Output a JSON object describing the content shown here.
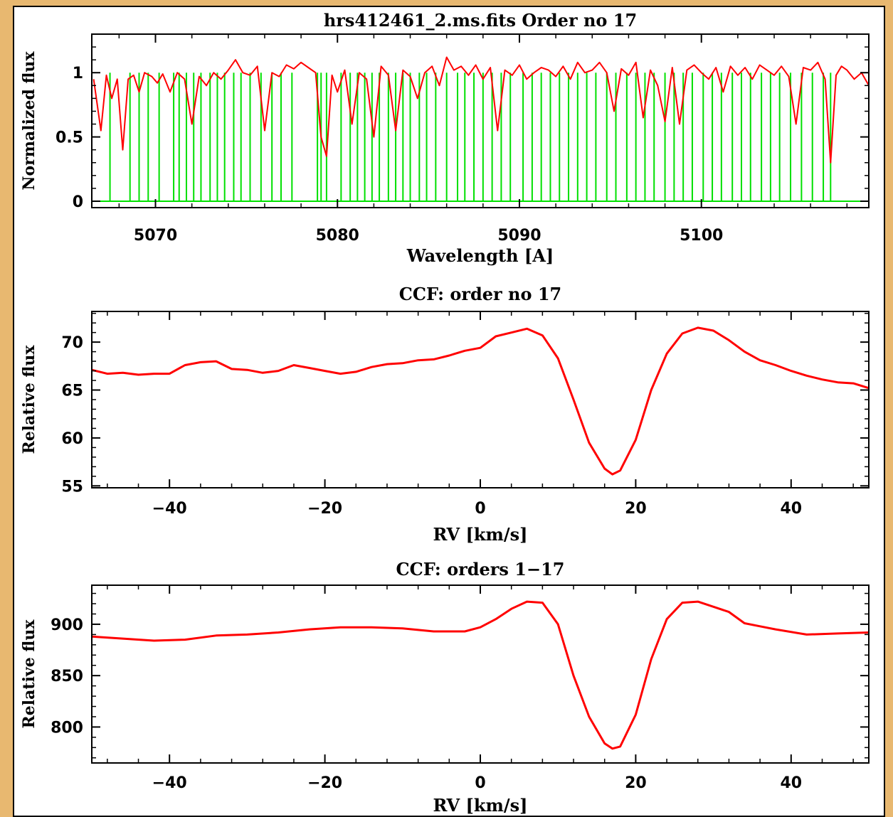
{
  "colors": {
    "page_background": "#e8b870",
    "plot_background": "#ffffff",
    "spectrum": "#ff0000",
    "mask": "#00e000",
    "axes": "#000000"
  },
  "chart_data": [
    {
      "type": "line",
      "title": "hrs412461_2.ms.fits Order no   17",
      "xlabel": "Wavelength [A]",
      "ylabel": "Normalized flux",
      "xlim": [
        5066.5,
        5109.2
      ],
      "ylim": [
        -0.05,
        1.3
      ],
      "xticks": [
        5070,
        5080,
        5090,
        5100
      ],
      "yticks": [
        0,
        0.5,
        1
      ],
      "xtick_labels": [
        "5070",
        "5080",
        "5090",
        "5100"
      ],
      "ytick_labels": [
        "0",
        "0.5",
        "1"
      ],
      "series": [
        {
          "label": "spectrum",
          "color": "#ff0000",
          "x": [
            5066.6,
            5067.0,
            5067.3,
            5067.6,
            5067.9,
            5068.2,
            5068.5,
            5068.8,
            5069.1,
            5069.4,
            5069.8,
            5070.1,
            5070.4,
            5070.8,
            5071.2,
            5071.6,
            5072.0,
            5072.4,
            5072.8,
            5073.2,
            5073.6,
            5074.0,
            5074.4,
            5074.8,
            5075.2,
            5075.6,
            5076.0,
            5076.4,
            5076.8,
            5077.2,
            5077.6,
            5078.0,
            5078.4,
            5078.8,
            5079.1,
            5079.4,
            5079.7,
            5080.0,
            5080.4,
            5080.8,
            5081.2,
            5081.6,
            5082.0,
            5082.4,
            5082.8,
            5083.2,
            5083.6,
            5084.0,
            5084.4,
            5084.8,
            5085.2,
            5085.6,
            5086.0,
            5086.4,
            5086.8,
            5087.2,
            5087.6,
            5088.0,
            5088.4,
            5088.8,
            5089.2,
            5089.6,
            5090.0,
            5090.4,
            5090.8,
            5091.2,
            5091.6,
            5092.0,
            5092.4,
            5092.8,
            5093.2,
            5093.6,
            5094.0,
            5094.4,
            5094.8,
            5095.2,
            5095.6,
            5096.0,
            5096.4,
            5096.8,
            5097.2,
            5097.6,
            5098.0,
            5098.4,
            5098.8,
            5099.2,
            5099.6,
            5100.0,
            5100.4,
            5100.8,
            5101.2,
            5101.6,
            5102.0,
            5102.4,
            5102.8,
            5103.2,
            5103.6,
            5104.0,
            5104.4,
            5104.8,
            5105.2,
            5105.6,
            5106.0,
            5106.4,
            5106.8,
            5107.1,
            5107.4,
            5107.7,
            5108.0,
            5108.4,
            5108.8,
            5109.2
          ],
          "y": [
            0.95,
            0.55,
            0.98,
            0.8,
            0.95,
            0.4,
            0.95,
            0.98,
            0.85,
            1.0,
            0.97,
            0.92,
            0.99,
            0.85,
            1.0,
            0.95,
            0.6,
            0.97,
            0.9,
            1.0,
            0.95,
            1.02,
            1.1,
            1.0,
            0.98,
            1.05,
            0.55,
            1.0,
            0.97,
            1.06,
            1.03,
            1.08,
            1.04,
            1.0,
            0.5,
            0.35,
            0.98,
            0.85,
            1.02,
            0.6,
            1.0,
            0.95,
            0.5,
            1.05,
            0.98,
            0.55,
            1.02,
            0.97,
            0.8,
            1.0,
            1.05,
            0.9,
            1.12,
            1.02,
            1.05,
            0.98,
            1.06,
            0.95,
            1.04,
            0.55,
            1.02,
            0.98,
            1.06,
            0.95,
            1.0,
            1.04,
            1.02,
            0.97,
            1.05,
            0.95,
            1.08,
            1.0,
            1.02,
            1.08,
            1.0,
            0.7,
            1.03,
            0.98,
            1.08,
            0.65,
            1.02,
            0.9,
            0.62,
            1.04,
            0.6,
            1.02,
            1.06,
            1.0,
            0.95,
            1.04,
            0.85,
            1.05,
            0.98,
            1.04,
            0.95,
            1.06,
            1.02,
            0.98,
            1.05,
            0.97,
            0.6,
            1.04,
            1.02,
            1.08,
            0.95,
            0.3,
            0.98,
            1.05,
            1.02,
            0.95,
            1.0,
            0.9
          ]
        },
        {
          "label": "mask",
          "color": "#00e000",
          "lines_x": [
            5067.5,
            5068.6,
            5069.1,
            5069.6,
            5070.2,
            5071.0,
            5071.3,
            5071.7,
            5072.1,
            5072.5,
            5073.0,
            5073.4,
            5073.8,
            5074.3,
            5074.7,
            5075.2,
            5075.8,
            5076.4,
            5076.9,
            5077.5,
            5078.9,
            5079.1,
            5079.4,
            5080.2,
            5080.7,
            5081.1,
            5081.5,
            5081.9,
            5082.3,
            5082.8,
            5083.2,
            5083.6,
            5084.0,
            5084.5,
            5084.9,
            5085.4,
            5086.0,
            5086.6,
            5087.0,
            5087.5,
            5088.0,
            5088.5,
            5089.0,
            5089.5,
            5090.2,
            5090.7,
            5091.2,
            5091.7,
            5092.2,
            5092.7,
            5093.2,
            5093.7,
            5094.2,
            5094.8,
            5095.3,
            5095.9,
            5096.4,
            5096.9,
            5097.4,
            5098.0,
            5098.5,
            5099.0,
            5099.5,
            5100.1,
            5100.6,
            5101.1,
            5101.7,
            5102.2,
            5102.7,
            5103.3,
            5103.8,
            5104.3,
            5104.9,
            5105.5,
            5106.1,
            5106.7,
            5107.1
          ]
        }
      ]
    },
    {
      "type": "line",
      "title": "CCF: order no 17",
      "xlabel": "RV [km/s]",
      "ylabel": "Relative flux",
      "xlim": [
        -50,
        50
      ],
      "ylim": [
        54.8,
        73.2
      ],
      "xticks": [
        -40,
        -20,
        0,
        20,
        40
      ],
      "yticks": [
        55,
        60,
        65,
        70
      ],
      "xtick_labels": [
        "−40",
        "−20",
        "0",
        "20",
        "40"
      ],
      "ytick_labels": [
        "55",
        "60",
        "65",
        "70"
      ],
      "series": [
        {
          "label": "ccf",
          "color": "#ff0000",
          "x": [
            -50,
            -48,
            -46,
            -44,
            -42,
            -40,
            -38,
            -36,
            -34,
            -32,
            -30,
            -28,
            -26,
            -24,
            -22,
            -20,
            -18,
            -16,
            -14,
            -12,
            -10,
            -8,
            -6,
            -4,
            -2,
            0,
            2,
            4,
            6,
            8,
            10,
            12,
            14,
            16,
            17,
            18,
            20,
            22,
            24,
            26,
            28,
            30,
            32,
            34,
            36,
            38,
            40,
            42,
            44,
            46,
            48,
            50
          ],
          "y": [
            67.1,
            66.7,
            66.8,
            66.6,
            66.7,
            66.7,
            67.6,
            67.9,
            68.0,
            67.2,
            67.1,
            66.8,
            67.0,
            67.6,
            67.3,
            67.0,
            66.7,
            66.9,
            67.4,
            67.7,
            67.8,
            68.1,
            68.2,
            68.6,
            69.1,
            69.4,
            70.6,
            71.0,
            71.4,
            70.7,
            68.3,
            64.0,
            59.5,
            56.8,
            56.2,
            56.6,
            59.8,
            65.0,
            68.8,
            70.9,
            71.5,
            71.2,
            70.2,
            69.0,
            68.1,
            67.6,
            67.0,
            66.5,
            66.1,
            65.8,
            65.7,
            65.2
          ]
        }
      ]
    },
    {
      "type": "line",
      "title": "CCF: orders 1−17",
      "xlabel": "RV [km/s]",
      "ylabel": "Relative flux",
      "xlim": [
        -50,
        50
      ],
      "ylim": [
        765,
        938
      ],
      "xticks": [
        -40,
        -20,
        0,
        20,
        40
      ],
      "yticks": [
        800,
        850,
        900
      ],
      "xtick_labels": [
        "−40",
        "−20",
        "0",
        "20",
        "40"
      ],
      "ytick_labels": [
        "800",
        "850",
        "900"
      ],
      "series": [
        {
          "label": "ccf",
          "color": "#ff0000",
          "x": [
            -50,
            -46,
            -42,
            -38,
            -34,
            -30,
            -26,
            -22,
            -18,
            -14,
            -10,
            -6,
            -2,
            0,
            2,
            4,
            6,
            8,
            10,
            12,
            14,
            16,
            17,
            18,
            20,
            22,
            24,
            26,
            28,
            30,
            32,
            34,
            36,
            38,
            42,
            46,
            50
          ],
          "y": [
            888,
            886,
            884,
            885,
            889,
            890,
            892,
            895,
            897,
            897,
            896,
            893,
            893,
            897,
            905,
            915,
            922,
            921,
            900,
            850,
            810,
            784,
            779,
            781,
            812,
            866,
            905,
            921,
            922,
            917,
            912,
            901,
            898,
            895,
            890,
            891,
            892
          ]
        }
      ]
    }
  ]
}
